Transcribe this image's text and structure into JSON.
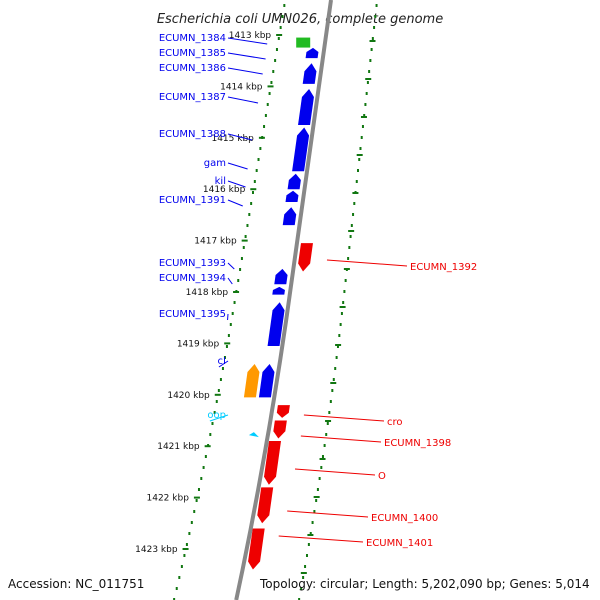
{
  "title": "Escherichia coli UMN026, complete genome",
  "footer": {
    "accession": "Accession: NC_011751",
    "topology": "Topology: circular; Length: 5,202,090 bp; Genes: 5,014"
  },
  "colors": {
    "forward": "#0000ee",
    "reverse": "#ee0000",
    "rrna": "#22bb22",
    "misc": "#ff9900",
    "misc_label": "#00ccff",
    "dots": "#117711",
    "backbone": "#888888"
  },
  "scale": {
    "unit": "kbp",
    "ticks": [
      {
        "kbp": 1413,
        "label": "1413 kbp"
      },
      {
        "kbp": 1414,
        "label": "1414 kbp"
      },
      {
        "kbp": 1415,
        "label": "1415 kbp"
      },
      {
        "kbp": 1416,
        "label": "1416 kbp"
      },
      {
        "kbp": 1417,
        "label": "1417 kbp"
      },
      {
        "kbp": 1418,
        "label": "1418 kbp"
      },
      {
        "kbp": 1419,
        "label": "1419 kbp"
      },
      {
        "kbp": 1420,
        "label": "1420 kbp"
      },
      {
        "kbp": 1421,
        "label": "1421 kbp"
      },
      {
        "kbp": 1422,
        "label": "1422 kbp"
      },
      {
        "kbp": 1423,
        "label": "1423 kbp"
      }
    ]
  },
  "genes": [
    {
      "label": "ECUMN_1384",
      "strand": "forward",
      "type": "rrna",
      "start_kbp": 1413.05,
      "end_kbp": 1413.2
    },
    {
      "label": "ECUMN_1385",
      "strand": "forward",
      "type": "cds",
      "start_kbp": 1413.25,
      "end_kbp": 1413.45
    },
    {
      "label": "ECUMN_1386",
      "strand": "forward",
      "type": "cds",
      "start_kbp": 1413.55,
      "end_kbp": 1413.95
    },
    {
      "label": "ECUMN_1387",
      "strand": "forward",
      "type": "cds",
      "start_kbp": 1414.05,
      "end_kbp": 1414.75
    },
    {
      "label": "ECUMN_1388",
      "strand": "forward",
      "type": "cds",
      "start_kbp": 1414.8,
      "end_kbp": 1415.65
    },
    {
      "label": "gam",
      "strand": "forward",
      "type": "cds",
      "start_kbp": 1415.7,
      "end_kbp": 1416.0
    },
    {
      "label": "kil",
      "strand": "forward",
      "type": "cds",
      "start_kbp": 1416.03,
      "end_kbp": 1416.25
    },
    {
      "label": "ECUMN_1391",
      "strand": "forward",
      "type": "cds",
      "start_kbp": 1416.35,
      "end_kbp": 1416.7
    },
    {
      "label": "ECUMN_1392",
      "strand": "reverse",
      "type": "cds",
      "start_kbp": 1417.05,
      "end_kbp": 1417.6
    },
    {
      "label": "ECUMN_1393",
      "strand": "forward",
      "type": "cds",
      "start_kbp": 1417.55,
      "end_kbp": 1417.85
    },
    {
      "label": "ECUMN_1394",
      "strand": "forward",
      "type": "cds",
      "start_kbp": 1417.9,
      "end_kbp": 1418.05
    },
    {
      "label": "ECUMN_1395",
      "strand": "forward",
      "type": "cds",
      "start_kbp": 1418.2,
      "end_kbp": 1419.05
    },
    {
      "label": "cI",
      "strand": "forward",
      "type": "misc",
      "start_kbp": 1419.4,
      "end_kbp": 1420.05
    },
    {
      "label": "",
      "strand": "forward",
      "type": "cds",
      "start_kbp": 1419.4,
      "end_kbp": 1420.05
    },
    {
      "label": "oop",
      "strand": "forward",
      "type": "small",
      "start_kbp": 1420.75,
      "end_kbp": 1420.82
    },
    {
      "label": "cro",
      "strand": "reverse",
      "type": "cds",
      "start_kbp": 1420.2,
      "end_kbp": 1420.45
    },
    {
      "label": "ECUMN_1398",
      "strand": "reverse",
      "type": "cds",
      "start_kbp": 1420.5,
      "end_kbp": 1420.85
    },
    {
      "label": "O",
      "strand": "reverse",
      "type": "cds",
      "start_kbp": 1420.9,
      "end_kbp": 1421.75
    },
    {
      "label": "ECUMN_1400",
      "strand": "reverse",
      "type": "cds",
      "start_kbp": 1421.8,
      "end_kbp": 1422.5
    },
    {
      "label": "ECUMN_1401",
      "strand": "reverse",
      "type": "cds",
      "start_kbp": 1422.6,
      "end_kbp": 1423.4
    }
  ]
}
